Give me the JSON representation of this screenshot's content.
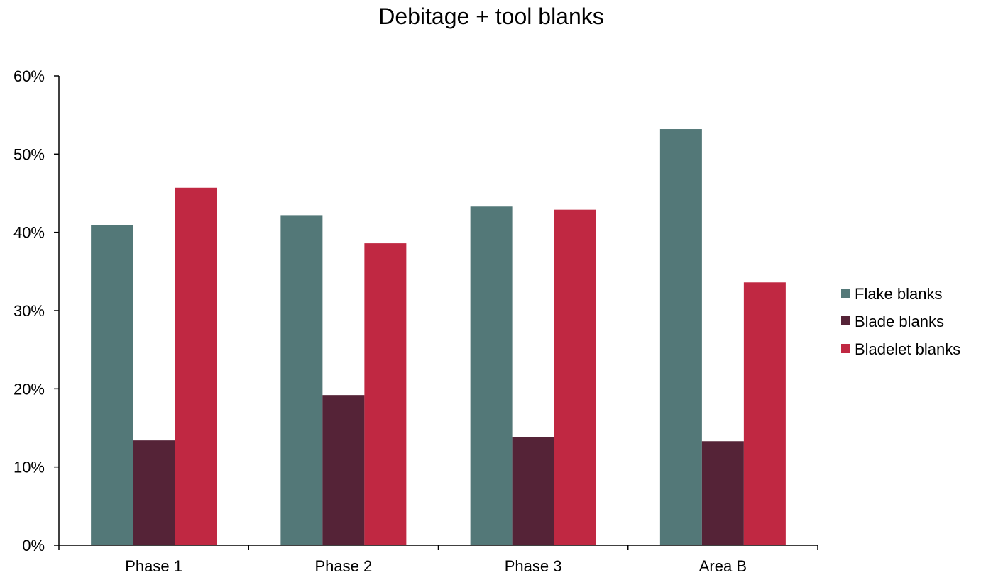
{
  "chart_data": {
    "type": "bar",
    "title": "Debitage + tool blanks",
    "xlabel": "",
    "ylabel": "",
    "categories": [
      "Phase 1",
      "Phase 2",
      "Phase 3",
      "Area B"
    ],
    "series": [
      {
        "name": "Flake blanks",
        "color": "#537878",
        "values": [
          40.9,
          42.2,
          43.3,
          53.2
        ]
      },
      {
        "name": "Blade blanks",
        "color": "#552337",
        "values": [
          13.4,
          19.2,
          13.8,
          13.3
        ]
      },
      {
        "name": "Bladelet blanks",
        "color": "#C02842",
        "values": [
          45.7,
          38.6,
          42.9,
          33.6
        ]
      }
    ],
    "ylim": [
      0,
      60
    ],
    "yticks": [
      0,
      10,
      20,
      30,
      40,
      50,
      60
    ],
    "ytick_labels": [
      "0%",
      "10%",
      "20%",
      "30%",
      "40%",
      "50%",
      "60%"
    ],
    "grid": false,
    "legend_position": "right"
  }
}
